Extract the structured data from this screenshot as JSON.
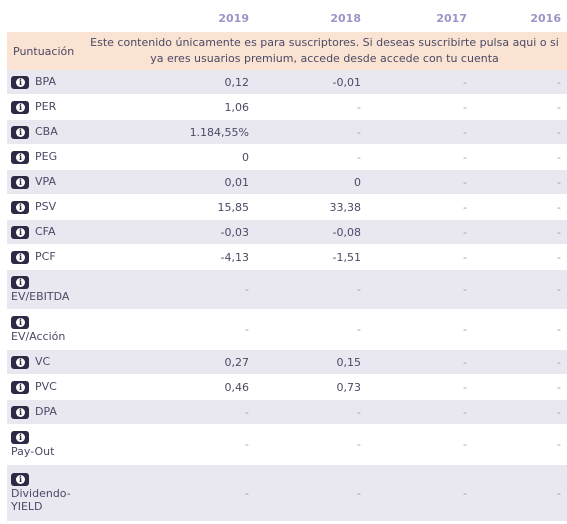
{
  "years": [
    "2019",
    "2018",
    "2017",
    "2016"
  ],
  "banner": {
    "label": "Puntuación",
    "message": "Este contenido únicamente es para suscriptores. Si deseas suscribirte pulsa aqui o si ya eres usuarios premium, accede desde accede con tu cuenta"
  },
  "rows": [
    {
      "label": "BPA",
      "values": [
        "0,12",
        "-0,01",
        "-",
        "-"
      ]
    },
    {
      "label": "PER",
      "values": [
        "1,06",
        "-",
        "-",
        "-"
      ]
    },
    {
      "label": "CBA",
      "values": [
        "1.184,55%",
        "-",
        "-",
        "-"
      ]
    },
    {
      "label": "PEG",
      "values": [
        "0",
        "-",
        "-",
        "-"
      ]
    },
    {
      "label": "VPA",
      "values": [
        "0,01",
        "0",
        "-",
        "-"
      ]
    },
    {
      "label": "PSV",
      "values": [
        "15,85",
        "33,38",
        "-",
        "-"
      ]
    },
    {
      "label": "CFA",
      "values": [
        "-0,03",
        "-0,08",
        "-",
        "-"
      ]
    },
    {
      "label": "PCF",
      "values": [
        "-4,13",
        "-1,51",
        "-",
        "-"
      ]
    },
    {
      "label": "EV/EBITDA",
      "values": [
        "-",
        "-",
        "-",
        "-"
      ]
    },
    {
      "label": "EV/Acción",
      "values": [
        "-",
        "-",
        "-",
        "-"
      ]
    },
    {
      "label": "VC",
      "values": [
        "0,27",
        "0,15",
        "-",
        "-"
      ]
    },
    {
      "label": "PVC",
      "values": [
        "0,46",
        "0,73",
        "-",
        "-"
      ]
    },
    {
      "label": "DPA",
      "values": [
        "-",
        "-",
        "-",
        "-"
      ]
    },
    {
      "label": "Pay-Out",
      "values": [
        "-",
        "-",
        "-",
        "-"
      ]
    },
    {
      "label": "Dividendo-YIELD",
      "values": [
        "-",
        "-",
        "-",
        "-"
      ]
    }
  ],
  "icon": "info-icon",
  "colors": {
    "header_year": "#9a95c8",
    "banner_bg": "#fae3d2",
    "row_alt": "#e9e8f1",
    "icon_bg": "#2c2a45"
  }
}
